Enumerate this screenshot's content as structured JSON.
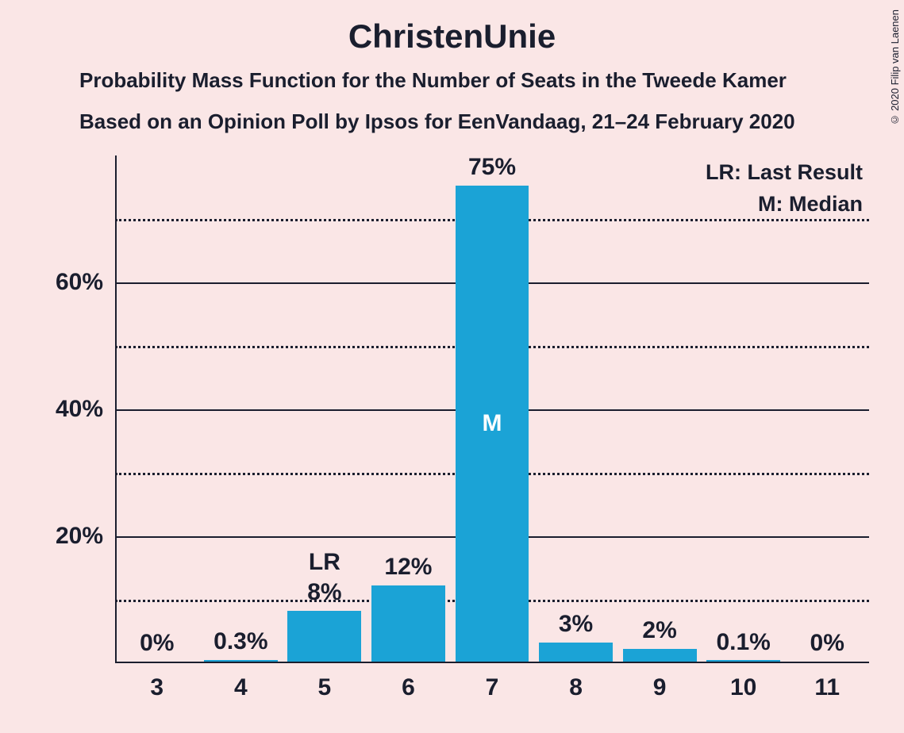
{
  "chart": {
    "type": "bar",
    "title": "ChristenUnie",
    "subtitle1": "Probability Mass Function for the Number of Seats in the Tweede Kamer",
    "subtitle2": "Based on an Opinion Poll by Ipsos for EenVandaag, 21–24 February 2020",
    "copyright": "© 2020 Filip van Laenen",
    "categories": [
      "3",
      "4",
      "5",
      "6",
      "7",
      "8",
      "9",
      "10",
      "11"
    ],
    "values": [
      0,
      0.3,
      8,
      12,
      75,
      3,
      2,
      0.1,
      0
    ],
    "value_labels": [
      "0%",
      "0.3%",
      "8%",
      "12%",
      "75%",
      "3%",
      "2%",
      "0.1%",
      "0%"
    ],
    "bar_color": "#1ba3d6",
    "background_color": "#fae6e6",
    "text_color": "#1a1e2e",
    "ylim": [
      0,
      80
    ],
    "ytick_major": [
      20,
      40,
      60
    ],
    "ytick_major_labels": [
      "20%",
      "40%",
      "60%"
    ],
    "ytick_minor": [
      10,
      30,
      50,
      70
    ],
    "bar_width_ratio": 0.88,
    "median_index": 4,
    "median_label": "M",
    "last_result_index": 2,
    "last_result_label": "LR",
    "legend": {
      "lr": "LR: Last Result",
      "m": "M: Median"
    },
    "title_fontsize": 42,
    "subtitle_fontsize": 26,
    "label_fontsize": 30,
    "legend_fontsize": 27,
    "copyright_fontsize": 13
  }
}
